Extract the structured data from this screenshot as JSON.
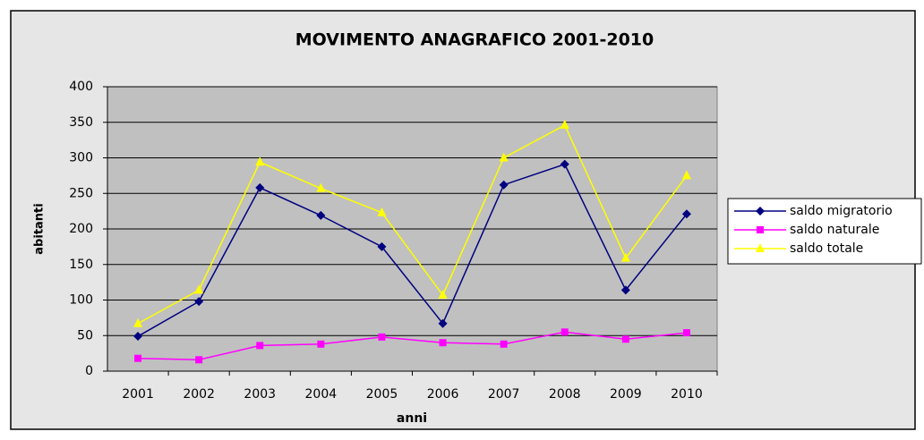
{
  "chart_data": {
    "type": "line",
    "title": "MOVIMENTO ANAGRAFICO 2001-2010",
    "x_label": "anni",
    "y_label": "abitanti",
    "categories": [
      "2001",
      "2002",
      "2003",
      "2004",
      "2005",
      "2006",
      "2007",
      "2008",
      "2009",
      "2010"
    ],
    "series": [
      {
        "name": "saldo migratorio",
        "color": "#000080",
        "marker": "diamond",
        "values": [
          49,
          98,
          258,
          219,
          175,
          67,
          262,
          291,
          114,
          221
        ]
      },
      {
        "name": "saldo naturale",
        "color": "#ff00ff",
        "marker": "square",
        "values": [
          18,
          16,
          36,
          38,
          48,
          40,
          38,
          55,
          45,
          54
        ]
      },
      {
        "name": "saldo totale",
        "color": "#ffff00",
        "marker": "triangle",
        "values": [
          67,
          114,
          294,
          257,
          223,
          107,
          300,
          346,
          159,
          275
        ]
      }
    ],
    "ylim": [
      0,
      400
    ],
    "yticks": [
      0,
      50,
      100,
      150,
      200,
      250,
      300,
      350,
      400
    ],
    "grid": true,
    "legend": "right"
  }
}
